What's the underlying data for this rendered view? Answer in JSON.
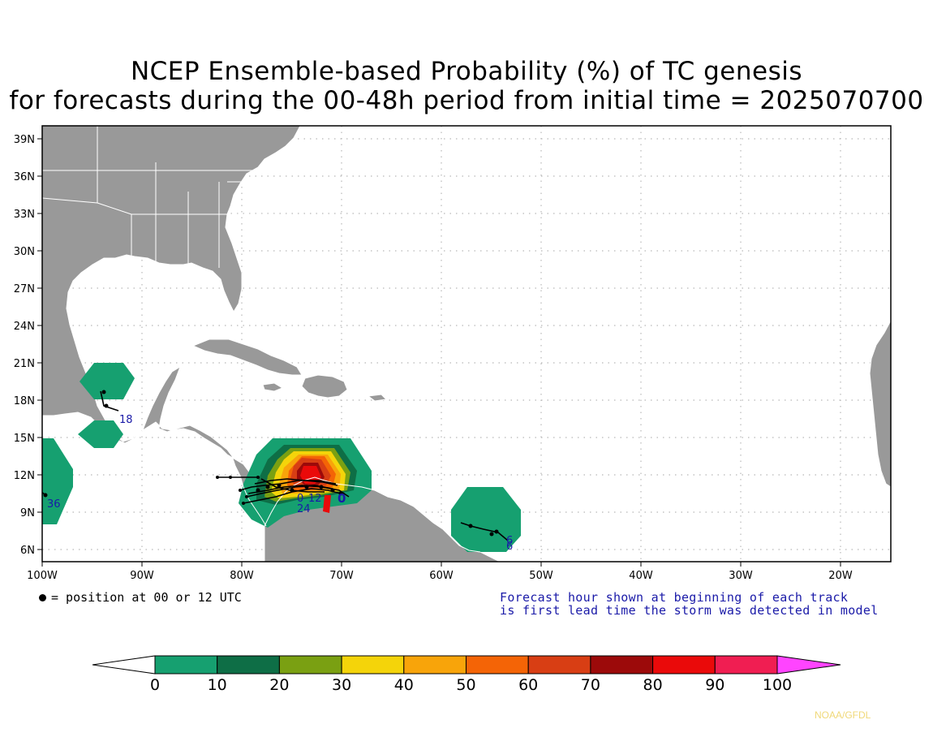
{
  "title_line1": "NCEP Ensemble-based Probability (%) of TC genesis",
  "title_line2": "for forecasts during the 00-48h period from initial time = 2025070700",
  "lat_labels": [
    "39N",
    "36N",
    "33N",
    "30N",
    "27N",
    "24N",
    "21N",
    "18N",
    "15N",
    "12N",
    "9N",
    "6N"
  ],
  "lon_labels": [
    "100W",
    "90W",
    "80W",
    "70W",
    "60W",
    "50W",
    "40W",
    "30W",
    "20W"
  ],
  "legend_dot_label": "= position at 00 or 12 UTC",
  "note_line1": "Forecast hour shown at beginning of each track",
  "note_line2": "is first lead time the storm was detected in model",
  "colorbar": {
    "ticks": [
      "0",
      "10",
      "20",
      "30",
      "40",
      "50",
      "60",
      "70",
      "80",
      "90",
      "100"
    ],
    "colors": [
      "#16a070",
      "#0e6e46",
      "#7aa012",
      "#f4d40a",
      "#f8a40a",
      "#f46406",
      "#d83e14",
      "#9c0a0a",
      "#ea0a0a",
      "#f01e52"
    ],
    "below_color": "#ffffff",
    "above_color": "#ff44ff"
  },
  "track_labels": [
    "18",
    "36",
    "24",
    "0",
    "12",
    "6",
    "6"
  ],
  "credit": "NOAA/GFDL",
  "colors": {
    "land": "#999999",
    "ocean": "#ffffff",
    "track": "#000000",
    "track_label": "#1a1aa8"
  }
}
